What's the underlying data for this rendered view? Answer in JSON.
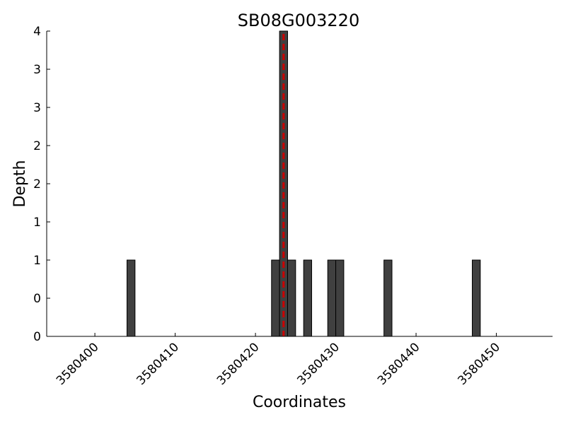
{
  "chart_data": {
    "type": "bar",
    "title": "SB08G003220",
    "x_label": "Coordinates",
    "y_label": "Depth",
    "x": [
      3580404,
      3580422,
      3580423,
      3580424,
      3580426,
      3580429,
      3580430,
      3580436,
      3580447
    ],
    "values": [
      1,
      1,
      4,
      1,
      1,
      1,
      1,
      1,
      1
    ],
    "color": "#404040",
    "edge_color": "#000000",
    "marker_x": 3580423.5,
    "marker_color": "#cc0000",
    "xlim": [
      3580394,
      3580457
    ],
    "xticks": [
      3580400,
      3580410,
      3580420,
      3580430,
      3580440,
      3580450
    ],
    "ylim": [
      0,
      4
    ],
    "yticks": [
      0,
      {
        "value": 0.5,
        "label": "0"
      },
      1,
      {
        "value": 1.5,
        "label": "1"
      },
      2,
      {
        "value": 2.5,
        "label": "2"
      },
      3,
      {
        "value": 3.5,
        "label": "3"
      },
      4
    ]
  }
}
